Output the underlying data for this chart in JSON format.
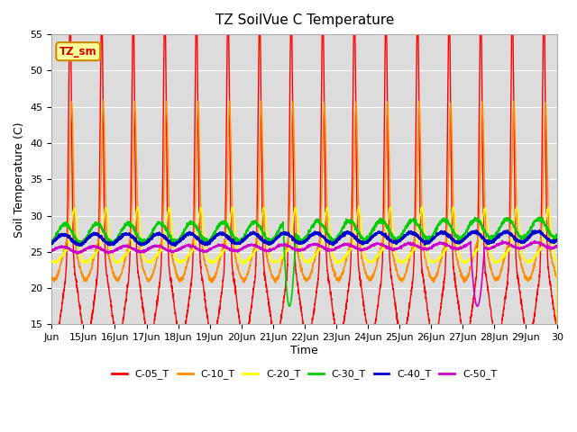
{
  "title": "TZ SoilVue C Temperature",
  "ylabel": "Soil Temperature (C)",
  "xlabel": "Time",
  "ylim": [
    15,
    55
  ],
  "xlim": [
    0,
    16
  ],
  "x_tick_labels": [
    "Jun",
    "15Jun",
    "16Jun",
    "17Jun",
    "18Jun",
    "19Jun",
    "20Jun",
    "21Jun",
    "22Jun",
    "23Jun",
    "24Jun",
    "25Jun",
    "26Jun",
    "27Jun",
    "28Jun",
    "29Jun",
    "30"
  ],
  "x_tick_positions": [
    0,
    1,
    2,
    3,
    4,
    5,
    6,
    7,
    8,
    9,
    10,
    11,
    12,
    13,
    14,
    15,
    16
  ],
  "y_ticks": [
    15,
    20,
    25,
    30,
    35,
    40,
    45,
    50,
    55
  ],
  "legend_labels": [
    "C-05_T",
    "C-10_T",
    "C-20_T",
    "C-30_T",
    "C-40_T",
    "C-50_T"
  ],
  "legend_colors": [
    "#ff0000",
    "#ff8c00",
    "#ffff00",
    "#00cc00",
    "#0000cc",
    "#cc00cc"
  ],
  "line_colors": [
    "#ff0000",
    "#ff8c00",
    "#ffff00",
    "#00cc00",
    "#0000cc",
    "#cc00cc"
  ],
  "background_color": "#dcdcdc",
  "outer_background": "#ffffff",
  "annotation_text": "TZ_sm",
  "annotation_bg": "#ffff99",
  "annotation_border": "#cc8800",
  "c05_mean": 36.0,
  "c05_amp": 17.5,
  "c10_mean": 33.5,
  "c10_amp": 9.5,
  "c20_mean": 27.5,
  "c20_amp": 3.0,
  "c30_mean": 27.5,
  "c30_amp": 1.3,
  "c40_mean": 26.7,
  "c40_amp": 0.7,
  "c50_mean": 25.3,
  "c50_amp": 0.4
}
